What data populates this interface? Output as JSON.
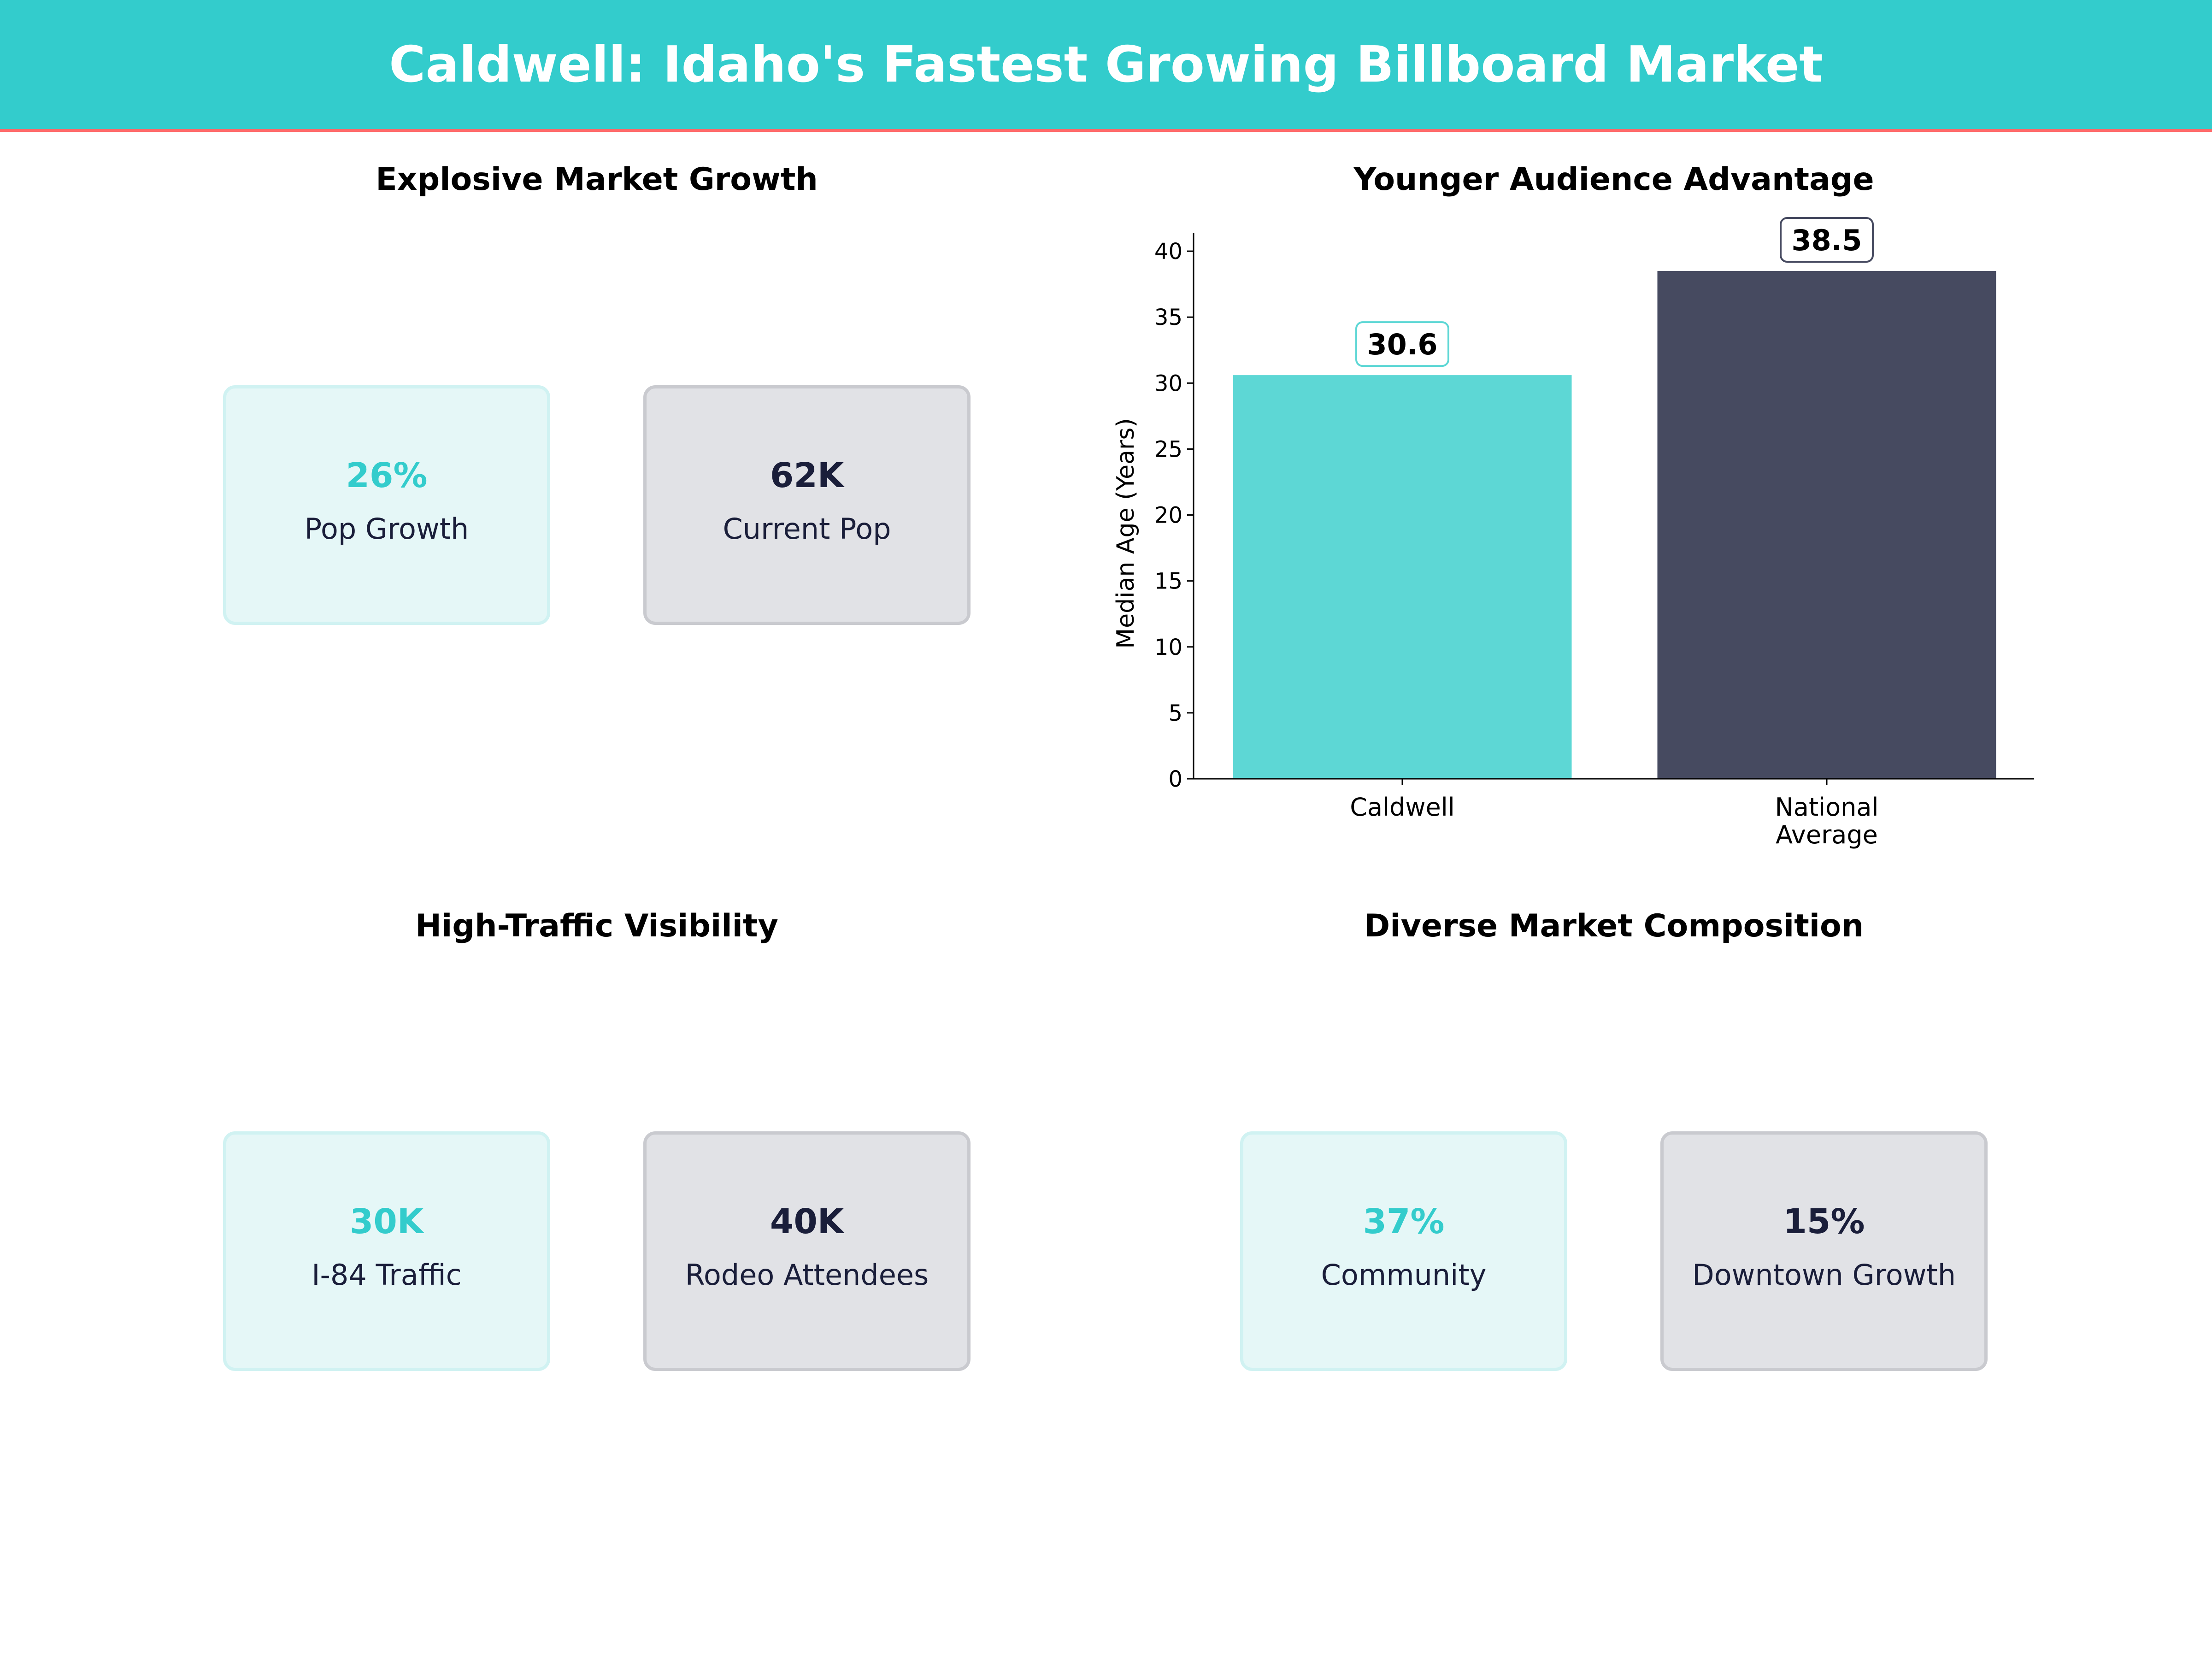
{
  "header": {
    "title": "Caldwell: Idaho's Fastest Growing Billboard Market"
  },
  "colors": {
    "teal": "#33cccc",
    "bar_teal": "#5dd7d5",
    "bar_dark": "#464a60",
    "navy": "#1a1e3a",
    "accent_line": "#ff6b6b"
  },
  "panels": {
    "growth": {
      "title": "Explosive Market Growth",
      "cards": [
        {
          "value": "26%",
          "label": "Pop Growth"
        },
        {
          "value": "62K",
          "label": "Current Pop"
        }
      ]
    },
    "traffic": {
      "title": "High-Traffic Visibility",
      "cards": [
        {
          "value": "30K",
          "label": "I-84 Traffic"
        },
        {
          "value": "40K",
          "label": "Rodeo Attendees"
        }
      ]
    },
    "composition": {
      "title": "Diverse Market Composition",
      "cards": [
        {
          "value": "37%",
          "label": "Community"
        },
        {
          "value": "15%",
          "label": "Downtown Growth"
        }
      ]
    }
  },
  "chart_data": {
    "type": "bar",
    "title": "Younger Audience Advantage",
    "categories": [
      "Caldwell",
      "National Average"
    ],
    "category_lines": [
      [
        "Caldwell"
      ],
      [
        "National",
        "Average"
      ]
    ],
    "values": [
      30.6,
      38.5
    ],
    "data_labels": [
      "30.6",
      "38.5"
    ],
    "xlabel": "",
    "ylabel": "Median Age (Years)",
    "ylim": [
      0,
      41.4
    ],
    "yticks": [
      0,
      5,
      10,
      15,
      20,
      25,
      30,
      35,
      40
    ],
    "grid": false,
    "bar_colors": [
      "#5dd7d5",
      "#464a60"
    ]
  }
}
